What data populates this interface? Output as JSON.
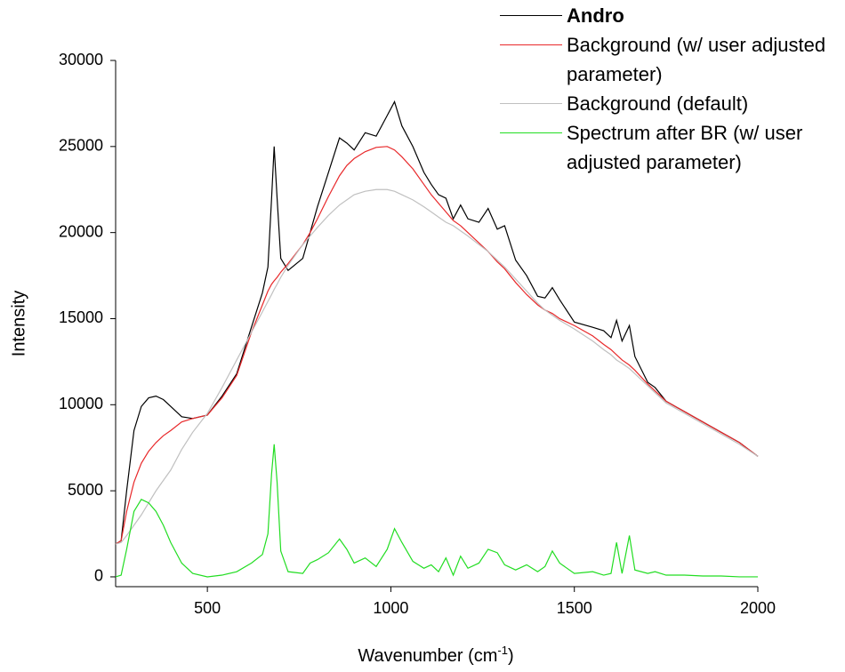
{
  "chart_data": {
    "type": "line",
    "xlabel": [
      "Wavenumber (cm",
      "-1",
      ")"
    ],
    "ylabel": "Intensity",
    "x": [
      250,
      265,
      280,
      300,
      320,
      340,
      360,
      380,
      400,
      430,
      460,
      500,
      540,
      580,
      620,
      650,
      665,
      675,
      682,
      690,
      700,
      720,
      760,
      780,
      800,
      830,
      860,
      880,
      900,
      930,
      960,
      990,
      1010,
      1030,
      1060,
      1090,
      1110,
      1130,
      1150,
      1170,
      1190,
      1210,
      1240,
      1265,
      1290,
      1310,
      1340,
      1370,
      1400,
      1420,
      1440,
      1460,
      1500,
      1550,
      1580,
      1600,
      1615,
      1630,
      1650,
      1665,
      1700,
      1720,
      1750,
      1800,
      1850,
      1900,
      1950,
      2000
    ],
    "series": [
      {
        "name": "Andro",
        "color": "#000000",
        "bold": true,
        "values": [
          1900,
          2100,
          5000,
          8500,
          9900,
          10400,
          10500,
          10300,
          9900,
          9300,
          9200,
          9400,
          10500,
          11800,
          14500,
          16500,
          18000,
          22000,
          25000,
          22000,
          18500,
          17800,
          18500,
          20000,
          21500,
          23500,
          25500,
          25200,
          24800,
          25800,
          25600,
          26800,
          27600,
          26200,
          25000,
          23500,
          22800,
          22200,
          22000,
          20800,
          21600,
          20800,
          20600,
          21400,
          20200,
          20400,
          18400,
          17500,
          16300,
          16200,
          16800,
          16100,
          14800,
          14500,
          14300,
          13900,
          14900,
          13700,
          14600,
          12800,
          11300,
          11000,
          10200,
          9600,
          9000,
          8400,
          7800,
          7000
        ]
      },
      {
        "name": "Background (w/ user adjusted parameter)",
        "color": "#e8282a",
        "bold": false,
        "values": [
          1900,
          2100,
          3800,
          5500,
          6600,
          7300,
          7800,
          8200,
          8500,
          9000,
          9200,
          9400,
          10400,
          11700,
          14200,
          15800,
          16600,
          17000,
          17200,
          17400,
          17700,
          18200,
          19300,
          20000,
          20800,
          22100,
          23300,
          23900,
          24300,
          24700,
          24950,
          25000,
          24800,
          24400,
          23700,
          22800,
          22200,
          21700,
          21200,
          20700,
          20400,
          20000,
          19400,
          18900,
          18300,
          17900,
          17100,
          16400,
          15800,
          15500,
          15300,
          15000,
          14600,
          14000,
          13500,
          13200,
          12900,
          12600,
          12300,
          12000,
          11200,
          10800,
          10200,
          9600,
          9000,
          8400,
          7800,
          7000
        ]
      },
      {
        "name": "Background (default)",
        "color": "#c0c0c0",
        "bold": false,
        "values": [
          1900,
          2000,
          2400,
          3000,
          3600,
          4300,
          5000,
          5600,
          6200,
          7400,
          8400,
          9500,
          11000,
          12600,
          14200,
          15400,
          16000,
          16400,
          16700,
          17000,
          17400,
          18100,
          19300,
          19800,
          20300,
          21000,
          21600,
          21900,
          22200,
          22400,
          22500,
          22500,
          22400,
          22200,
          21900,
          21500,
          21200,
          20900,
          20600,
          20400,
          20100,
          19800,
          19300,
          18900,
          18400,
          18000,
          17300,
          16600,
          15900,
          15500,
          15200,
          14900,
          14400,
          13700,
          13200,
          12900,
          12600,
          12400,
          12100,
          11800,
          11100,
          10700,
          10100,
          9500,
          8900,
          8300,
          7700,
          7000
        ]
      },
      {
        "name": "Spectrum after BR (w/ user adjusted parameter)",
        "color": "#22dd22",
        "bold": false,
        "values": [
          0,
          100,
          1600,
          3800,
          4500,
          4300,
          3800,
          3000,
          2000,
          800,
          200,
          0,
          100,
          300,
          800,
          1300,
          2500,
          6000,
          7700,
          5500,
          1500,
          300,
          200,
          800,
          1000,
          1400,
          2200,
          1600,
          800,
          1100,
          600,
          1600,
          2800,
          2000,
          900,
          500,
          700,
          300,
          1100,
          100,
          1200,
          500,
          800,
          1600,
          1400,
          700,
          400,
          700,
          300,
          600,
          1500,
          800,
          200,
          300,
          100,
          200,
          2000,
          200,
          2400,
          400,
          200,
          300,
          100,
          100,
          50,
          50,
          0,
          0
        ]
      }
    ],
    "xlim": [
      250,
      2000
    ],
    "xticks": [
      500,
      1000,
      1500,
      2000
    ],
    "ylim": [
      -570,
      30000
    ],
    "yticks": [
      0,
      5000,
      10000,
      15000,
      20000,
      25000,
      30000
    ],
    "grid": false
  }
}
